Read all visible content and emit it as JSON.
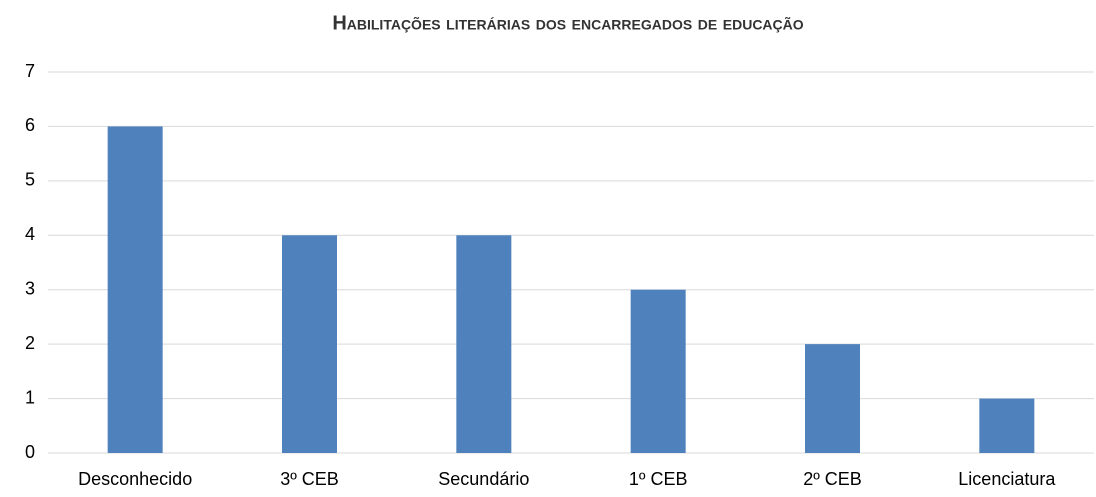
{
  "chart_data": {
    "type": "bar",
    "title": "Habilitações literárias dos encarregados de educação",
    "categories": [
      "Desconhecido",
      "3º CEB",
      "Secundário",
      "1º CEB",
      "2º CEB",
      "Licenciatura"
    ],
    "values": [
      6,
      4,
      4,
      3,
      2,
      1
    ],
    "color": "#4f81bd",
    "ylim": [
      0,
      7
    ],
    "yticks": [
      0,
      1,
      2,
      3,
      4,
      5,
      6,
      7
    ],
    "grid": true
  }
}
